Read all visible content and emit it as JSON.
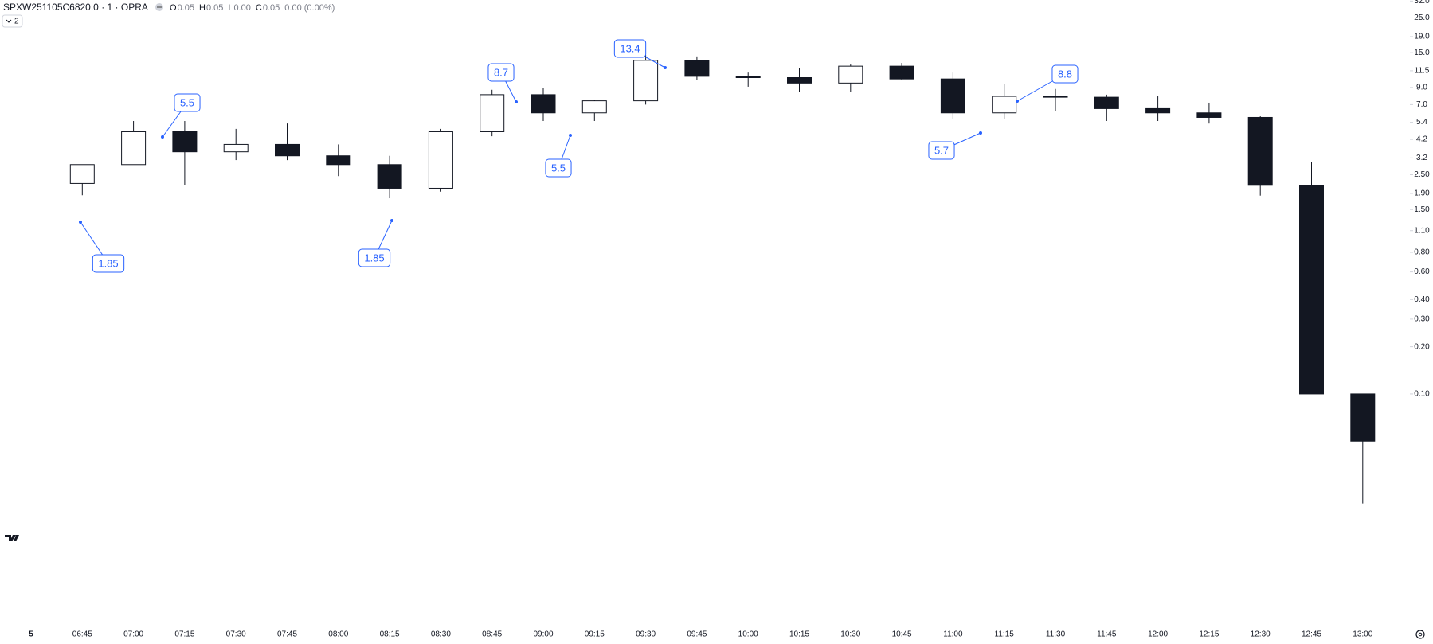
{
  "header": {
    "symbol": "SPXW251105C6820.0 · 1 · OPRA",
    "ohlc": [
      {
        "label": "O",
        "value": "0.05"
      },
      {
        "label": "H",
        "value": "0.05"
      },
      {
        "label": "L",
        "value": "0.00"
      },
      {
        "label": "C",
        "value": "0.05"
      }
    ],
    "change": "0.00 (0.00%)",
    "indicator_count": "2"
  },
  "chart_data": {
    "type": "candlestick",
    "log_scale": true,
    "up_color": "#ffffff",
    "down_color": "#131722",
    "border_color": "#131722",
    "x": [
      "06:45",
      "07:00",
      "07:15",
      "07:30",
      "07:45",
      "08:00",
      "08:15",
      "08:30",
      "08:45",
      "09:00",
      "09:15",
      "09:30",
      "09:45",
      "10:00",
      "10:15",
      "10:30",
      "10:45",
      "11:00",
      "11:15",
      "11:30",
      "11:45",
      "12:00",
      "12:15",
      "12:30",
      "12:45",
      "13:00"
    ],
    "open": [
      2.2,
      2.9,
      4.7,
      3.5,
      3.9,
      3.3,
      2.9,
      2.05,
      4.7,
      8.1,
      6.2,
      7.4,
      13.4,
      10.6,
      10.4,
      9.6,
      12.3,
      10.2,
      6.2,
      7.9,
      7.8,
      6.6,
      6.2,
      5.8,
      2.14,
      0.1
    ],
    "high": [
      2.7,
      5.5,
      5.5,
      4.9,
      5.3,
      3.9,
      3.3,
      4.9,
      8.7,
      8.9,
      7.5,
      14.5,
      14.2,
      11.2,
      11.9,
      12.6,
      12.9,
      11.2,
      9.5,
      8.8,
      8.1,
      7.9,
      7.2,
      5.9,
      3.0,
      0.1
    ],
    "low": [
      1.85,
      3.1,
      2.15,
      3.1,
      3.1,
      2.45,
      1.77,
      1.95,
      4.4,
      5.5,
      5.5,
      7.0,
      10.0,
      9.1,
      8.4,
      8.4,
      10.0,
      5.7,
      5.7,
      6.4,
      5.5,
      5.5,
      5.3,
      1.84,
      0.1,
      0.02
    ],
    "close": [
      2.9,
      4.7,
      3.5,
      3.9,
      3.3,
      2.9,
      2.05,
      4.7,
      8.1,
      6.2,
      7.4,
      13.4,
      10.6,
      10.4,
      9.6,
      12.3,
      10.2,
      6.2,
      7.9,
      7.8,
      6.6,
      6.2,
      5.8,
      2.14,
      0.1,
      0.05
    ],
    "ylim": [
      0.0115,
      32.5
    ],
    "yticks": [
      {
        "value": 32,
        "label": "32.0"
      },
      {
        "value": 25,
        "label": "25.0"
      },
      {
        "value": 19,
        "label": "19.0"
      },
      {
        "value": 15,
        "label": "15.0"
      },
      11.5,
      {
        "value": 9,
        "label": "9.0"
      },
      {
        "value": 7,
        "label": "7.0"
      },
      5.4,
      4.2,
      3.2,
      {
        "value": 2.5,
        "label": "2.50"
      },
      {
        "value": 1.9,
        "label": "1.90"
      },
      {
        "value": 1.5,
        "label": "1.50"
      },
      {
        "value": 1.1,
        "label": "1.10"
      },
      {
        "value": 0.8,
        "label": "0.80"
      },
      {
        "value": 0.6,
        "label": "0.60"
      },
      {
        "value": 0.4,
        "label": "0.40"
      },
      {
        "value": 0.3,
        "label": "0.30"
      },
      {
        "value": 0.2,
        "label": "0.20"
      },
      {
        "value": 0.1,
        "label": "0.10"
      }
    ],
    "xticks": [
      "5",
      "06:45",
      "07:00",
      "07:15",
      "07:30",
      "07:45",
      "08:00",
      "08:15",
      "08:30",
      "08:45",
      "09:00",
      "09:15",
      "09:30",
      "09:45",
      "10:00",
      "10:15",
      "10:30",
      "10:45",
      "11:00",
      "11:15",
      "11:30",
      "11:45",
      "12:00",
      "12:15",
      "12:30",
      "12:45",
      "13:00"
    ],
    "annotations": [
      1.85,
      5.5,
      1.85,
      8.7,
      5.5,
      13.4,
      5.7,
      8.8
    ],
    "annotation_color": "#2962ff"
  }
}
